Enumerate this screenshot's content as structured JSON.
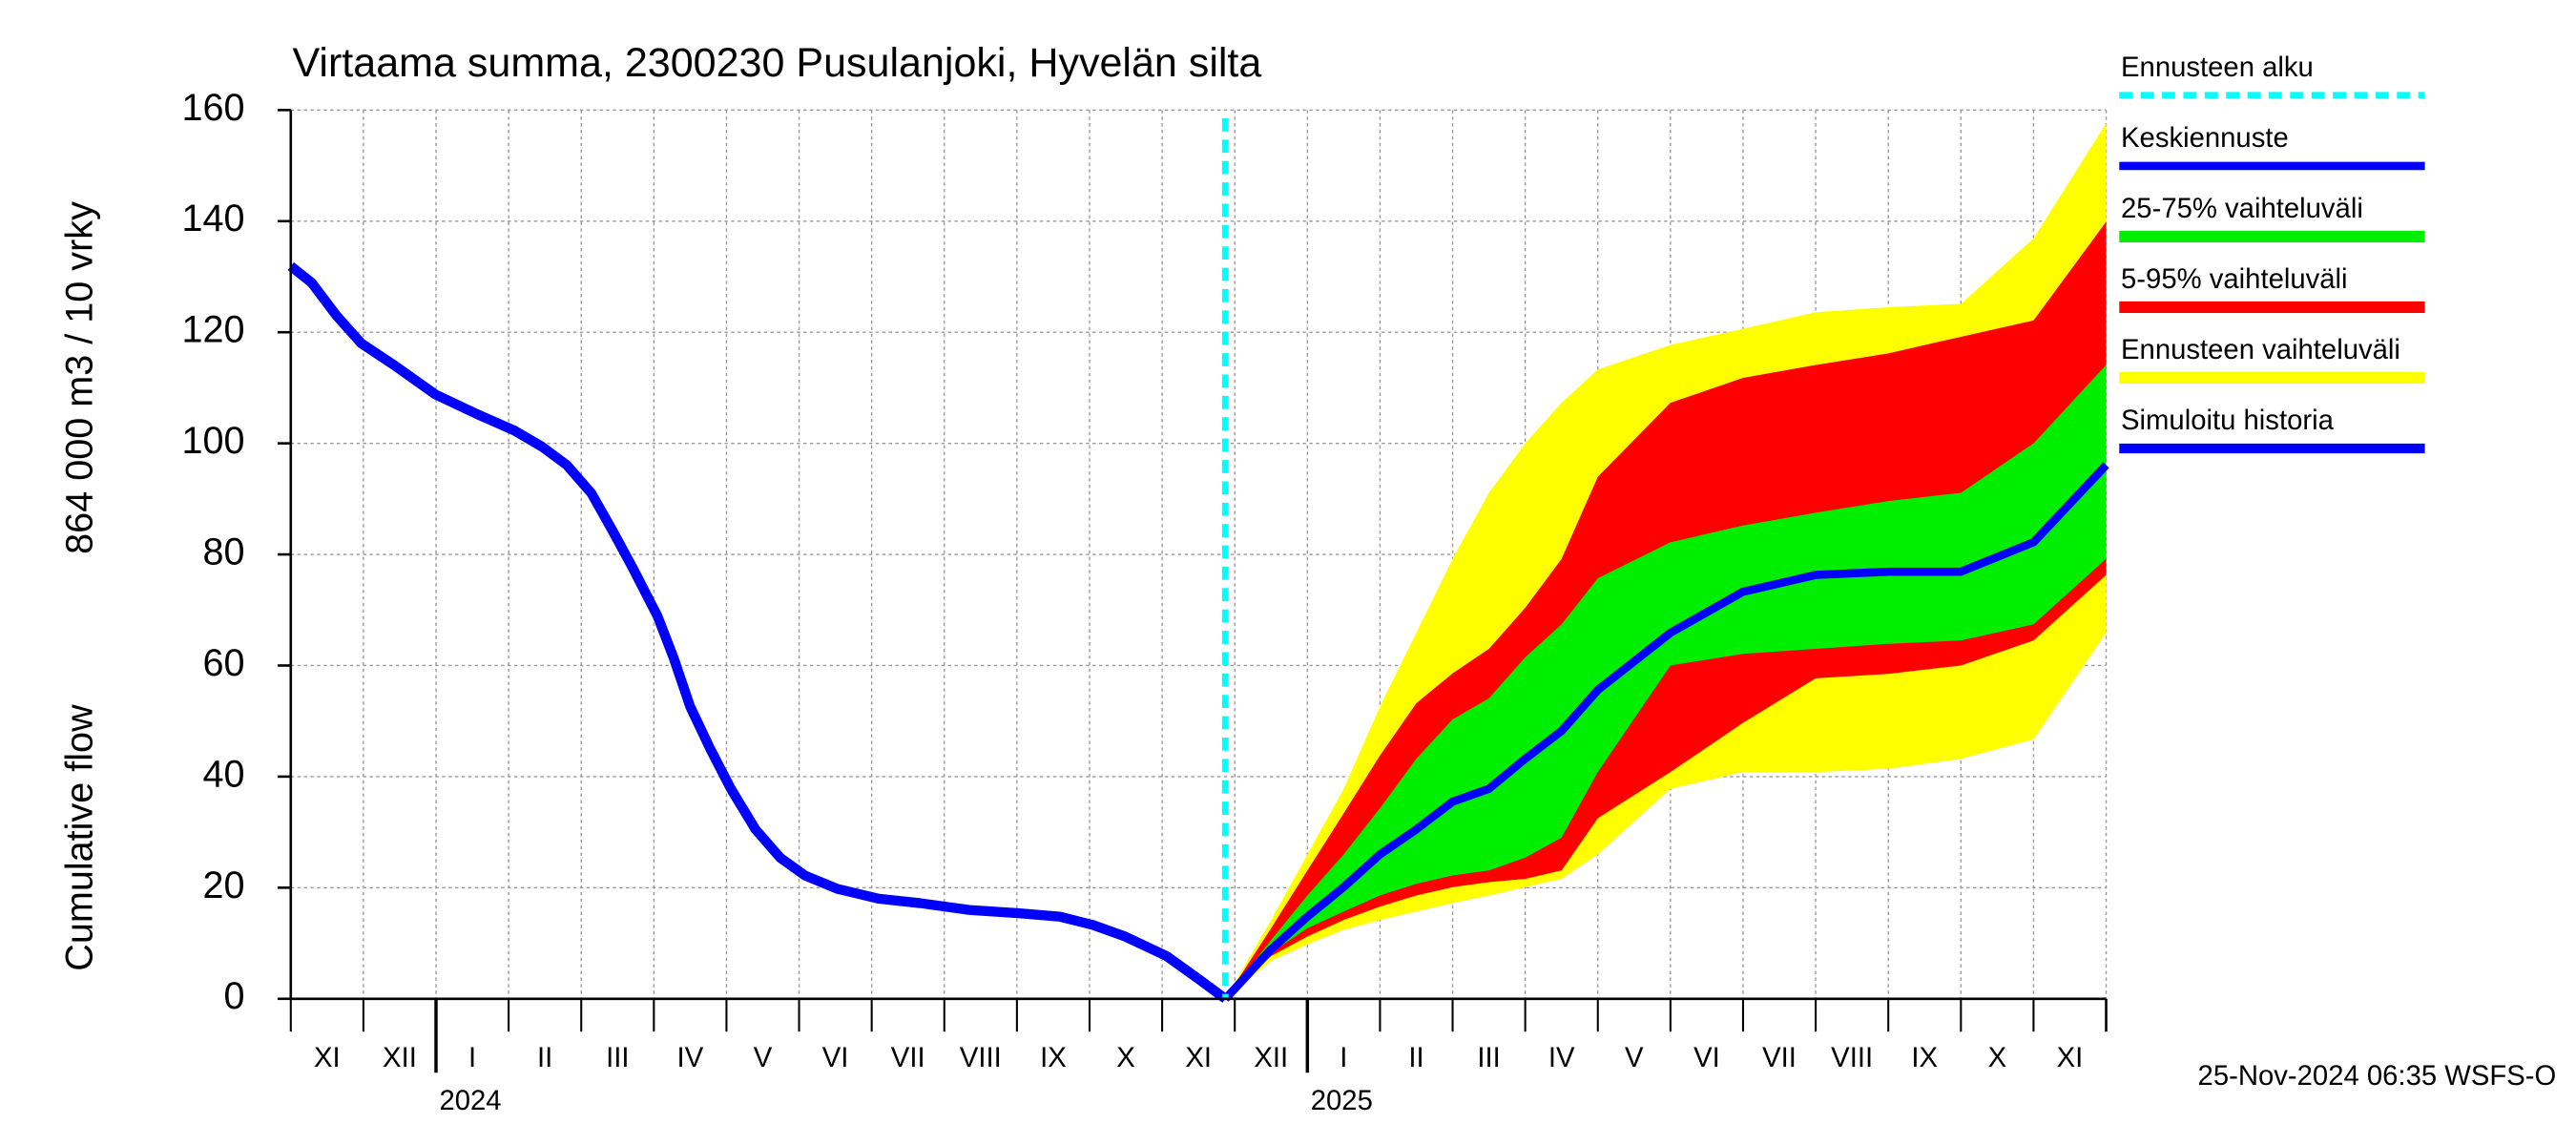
{
  "chart_data": {
    "type": "area-band",
    "title": "Virtaama summa, 2300230 Pusulanjoki, Hyvelän silta",
    "y_label_top": "864 000 m3 / 10 vrky",
    "y_label_bottom": "Cumulative flow",
    "footer": "25-Nov-2024 06:35 WSFS-O",
    "ylim": [
      0,
      160
    ],
    "yticks": [
      0,
      20,
      40,
      60,
      80,
      100,
      120,
      140,
      160
    ],
    "xlim": [
      0,
      25
    ],
    "grid": true,
    "month_labels": [
      "XI",
      "XII",
      "I",
      "II",
      "III",
      "IV",
      "V",
      "VI",
      "VII",
      "VIII",
      "IX",
      "X",
      "XI",
      "XII",
      "I",
      "II",
      "III",
      "IV",
      "V",
      "VI",
      "VII",
      "VIII",
      "IX",
      "X",
      "XI"
    ],
    "year_labels": [
      {
        "value": 2,
        "label": "2024"
      },
      {
        "value": 14,
        "label": "2025"
      }
    ],
    "forecast_start": {
      "name": "Ennusteen alku",
      "color": "#00ffff",
      "x": 12.87
    },
    "forecast_x": [
      12.87,
      13.5,
      14,
      14.5,
      15,
      15.5,
      16,
      16.5,
      17,
      17.5,
      18,
      19,
      20,
      21,
      22,
      23,
      24,
      25
    ],
    "bands": [
      {
        "name": "Ennusteen vaihteluväli",
        "color": "#ffff00",
        "lower": [
          0,
          6.8,
          9.8,
          12.4,
          14.2,
          15.7,
          17.2,
          18.6,
          20.1,
          21.6,
          26,
          37.8,
          40.8,
          40.8,
          41.4,
          43.2,
          46.7,
          65.9
        ],
        "upper": [
          0,
          14.2,
          26,
          37.8,
          52.6,
          65.9,
          79.2,
          91.1,
          100,
          107.3,
          113.3,
          117.7,
          120.6,
          123.6,
          124.5,
          125.1,
          136.9,
          157.6
        ]
      },
      {
        "name": "5-95% vaihteluväli",
        "color": "#ff0000",
        "lower": [
          0,
          7.7,
          11.2,
          14.2,
          16.6,
          18.6,
          20.1,
          21,
          21.6,
          23.1,
          32.5,
          40.8,
          49.7,
          57.7,
          58.5,
          60,
          64.5,
          76.3
        ],
        "upper": [
          0,
          12.7,
          23.1,
          33.4,
          43.8,
          53.2,
          58.6,
          63,
          70.4,
          79.2,
          94,
          107.3,
          111.8,
          114.1,
          116.2,
          119.2,
          122.1,
          139.9
        ]
      },
      {
        "name": "25-75% vaihteluväli",
        "color": "#00ee00",
        "lower": [
          0,
          8.3,
          12.7,
          15.7,
          18.6,
          20.7,
          22.2,
          23.1,
          25.4,
          29,
          40.8,
          60,
          62.1,
          63,
          63.9,
          64.5,
          67.4,
          79.2
        ],
        "upper": [
          0,
          10.6,
          18.6,
          26,
          34.3,
          43.2,
          50.3,
          54.1,
          61.5,
          67.4,
          75.7,
          82.2,
          85.2,
          87.5,
          89.6,
          91.1,
          100,
          114.1
        ]
      }
    ],
    "mean": {
      "name": "Keskiennuste",
      "color": "#0000ff",
      "values": [
        0,
        8.9,
        14.8,
        20.1,
        26,
        30.5,
        35.5,
        37.8,
        43.2,
        48.2,
        55.6,
        65.9,
        73.3,
        76.3,
        76.9,
        76.9,
        82.2,
        96.1
      ]
    },
    "history": {
      "name": "Simuloitu historia",
      "color": "#0000ff",
      "x": [
        0,
        0.29,
        0.63,
        0.97,
        1.43,
        1.99,
        2.56,
        3.08,
        3.46,
        3.8,
        4.14,
        4.43,
        4.7,
        5.05,
        5.27,
        5.5,
        5.77,
        6.06,
        6.4,
        6.74,
        7.08,
        7.53,
        8.1,
        8.67,
        9.34,
        10.02,
        10.59,
        11.04,
        11.49,
        12.06,
        12.51,
        12.87
      ],
      "values": [
        131.9,
        128.9,
        123,
        118,
        114,
        108.8,
        105.3,
        102.3,
        99.4,
        96.1,
        91,
        84.3,
        77.8,
        68.9,
        61.5,
        52.6,
        45.2,
        37.8,
        30.5,
        25.4,
        22.2,
        19.8,
        18,
        17.2,
        16,
        15.4,
        14.8,
        13.3,
        11.2,
        7.7,
        3.5,
        0
      ]
    }
  }
}
